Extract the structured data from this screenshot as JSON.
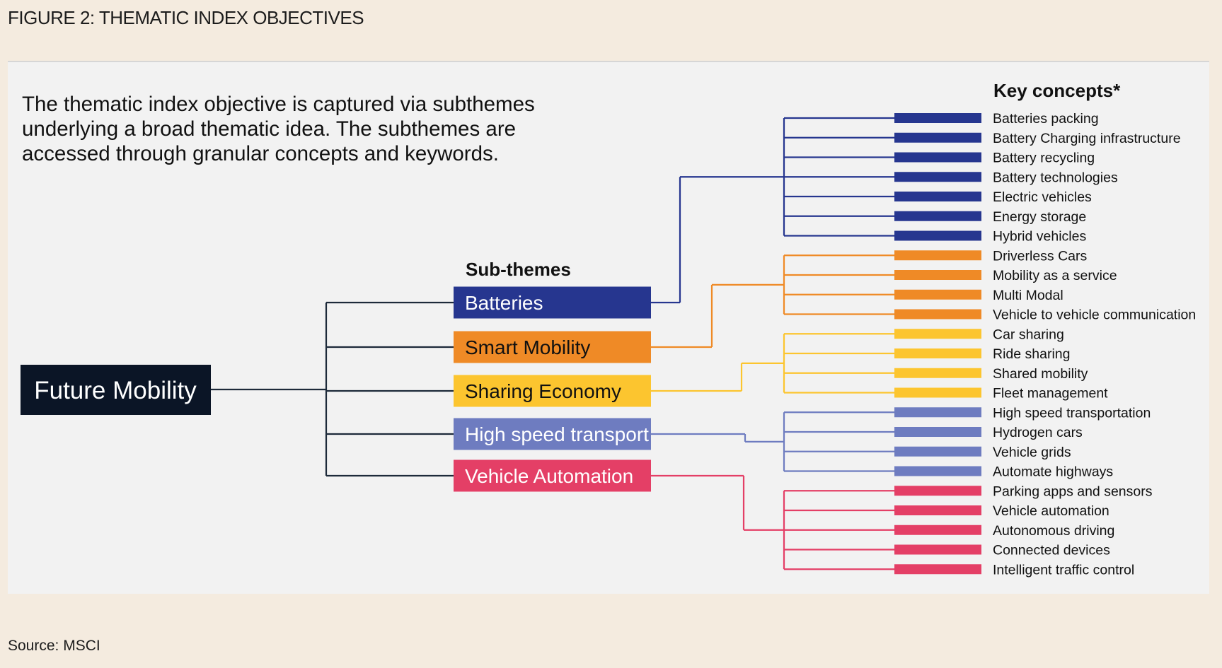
{
  "figure_title": "FIGURE 2: THEMATIC INDEX OBJECTIVES",
  "intro_lines": [
    "The thematic index objective is captured via subthemes",
    "underlying a broad thematic idea. The subthemes are",
    "accessed through granular concepts and keywords."
  ],
  "root": {
    "label": "Future Mobility",
    "color": "#0b1526"
  },
  "subthemes_header": "Sub-themes",
  "key_concepts_header": "Key concepts*",
  "line_color_root": "#1d2a3a",
  "subthemes": [
    {
      "label": "Batteries",
      "color": "#26368f",
      "text_color": "#ffffff",
      "concepts": [
        "Batteries packing",
        "Battery Charging infrastructure",
        "Battery recycling",
        "Battery technologies",
        "Electric vehicles",
        "Energy storage",
        "Hybrid vehicles"
      ]
    },
    {
      "label": "Smart Mobility",
      "color": "#ef8a26",
      "text_color": "#111111",
      "concepts": [
        "Driverless Cars",
        "Mobility as a service",
        "Multi Modal",
        "Vehicle to vehicle communication"
      ]
    },
    {
      "label": "Sharing Economy",
      "color": "#fcc52f",
      "text_color": "#111111",
      "concepts": [
        "Car sharing",
        "Ride sharing",
        "Shared mobility",
        "Fleet management"
      ]
    },
    {
      "label": "High speed transport",
      "color": "#6e7cc0",
      "text_color": "#ffffff",
      "concepts": [
        "High speed transportation",
        "Hydrogen cars",
        "Vehicle grids",
        "Automate highways"
      ]
    },
    {
      "label": "Vehicle Automation",
      "color": "#e43f66",
      "text_color": "#ffffff",
      "concepts": [
        "Parking apps and sensors",
        "Vehicle automation",
        "Autonomous driving",
        "Connected devices",
        "Intelligent traffic control"
      ]
    }
  ],
  "source": "Source: MSCI"
}
